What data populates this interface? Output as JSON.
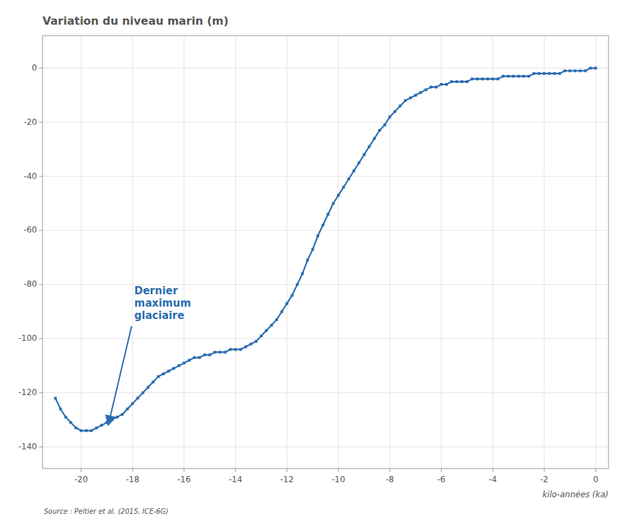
{
  "chart_data": {
    "type": "line",
    "title": "Variation du niveau marin (m)",
    "x_label": "kilo-années (ka)",
    "source": "Source : Peltier et al. (2015, ICE-6G)",
    "annotations": [
      {
        "text": "Dernier\nmaximum\nglaciaire",
        "x": -19.0,
        "y": -133
      }
    ],
    "color": "#2B6CB0",
    "marker": "square",
    "grid": true,
    "xlim": [
      -21.5,
      0.5
    ],
    "ylim": [
      -148,
      12
    ],
    "xticks": [
      -20,
      -18,
      -16,
      -14,
      -12,
      -10,
      -8,
      -6,
      -4,
      -2,
      0
    ],
    "yticks": [
      0,
      -20,
      -40,
      -60,
      -80,
      -100,
      -120,
      -140
    ],
    "x": [
      -21.0,
      -20.8,
      -20.6,
      -20.4,
      -20.2,
      -20.0,
      -19.8,
      -19.6,
      -19.4,
      -19.2,
      -19.0,
      -18.8,
      -18.6,
      -18.4,
      -18.2,
      -18.0,
      -17.8,
      -17.6,
      -17.4,
      -17.2,
      -17.0,
      -16.8,
      -16.6,
      -16.4,
      -16.2,
      -16.0,
      -15.8,
      -15.6,
      -15.4,
      -15.2,
      -15.0,
      -14.8,
      -14.6,
      -14.4,
      -14.2,
      -14.0,
      -13.8,
      -13.6,
      -13.4,
      -13.2,
      -13.0,
      -12.8,
      -12.6,
      -12.4,
      -12.2,
      -12.0,
      -11.8,
      -11.6,
      -11.4,
      -11.2,
      -11.0,
      -10.8,
      -10.6,
      -10.4,
      -10.2,
      -10.0,
      -9.8,
      -9.6,
      -9.4,
      -9.2,
      -9.0,
      -8.8,
      -8.6,
      -8.4,
      -8.2,
      -8.0,
      -7.8,
      -7.6,
      -7.4,
      -7.2,
      -7.0,
      -6.8,
      -6.6,
      -6.4,
      -6.2,
      -6.0,
      -5.8,
      -5.6,
      -5.4,
      -5.2,
      -5.0,
      -4.8,
      -4.6,
      -4.4,
      -4.2,
      -4.0,
      -3.8,
      -3.6,
      -3.4,
      -3.2,
      -3.0,
      -2.8,
      -2.6,
      -2.4,
      -2.2,
      -2.0,
      -1.8,
      -1.6,
      -1.4,
      -1.2,
      -1.0,
      -0.8,
      -0.6,
      -0.4,
      -0.2,
      0.0
    ],
    "values": [
      -122,
      -126,
      -129,
      -131,
      -133,
      -134,
      -134,
      -134,
      -133,
      -132,
      -131,
      -130,
      -129,
      -128,
      -126,
      -124,
      -122,
      -120,
      -118,
      -116,
      -114,
      -113,
      -112,
      -111,
      -110,
      -109,
      -108,
      -107,
      -107,
      -106,
      -106,
      -105,
      -105,
      -105,
      -104,
      -104,
      -104,
      -103,
      -102,
      -101,
      -99,
      -97,
      -95,
      -93,
      -90,
      -87,
      -84,
      -80,
      -76,
      -71,
      -67,
      -62,
      -58,
      -54,
      -50,
      -47,
      -44,
      -41,
      -38,
      -35,
      -32,
      -29,
      -26,
      -23,
      -21,
      -18,
      -16,
      -14,
      -12,
      -11,
      -10,
      -9,
      -8,
      -7,
      -7,
      -6,
      -6,
      -5,
      -5,
      -5,
      -5,
      -4,
      -4,
      -4,
      -4,
      -4,
      -4,
      -3,
      -3,
      -3,
      -3,
      -3,
      -3,
      -2,
      -2,
      -2,
      -2,
      -2,
      -2,
      -1,
      -1,
      -1,
      -1,
      -1,
      0,
      0
    ]
  }
}
